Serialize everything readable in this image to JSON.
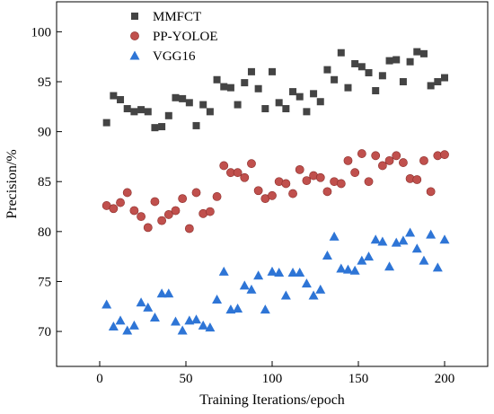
{
  "chart_data": {
    "type": "scatter",
    "xlabel": "Training Iterations/epoch",
    "ylabel": "Precision/%",
    "xlim": [
      -25,
      225
    ],
    "ylim": [
      66.5,
      103
    ],
    "xticks": [
      0,
      50,
      100,
      150,
      200
    ],
    "yticks": [
      70,
      75,
      80,
      85,
      90,
      95,
      100
    ],
    "grid": false,
    "legend_position": "top-left",
    "series": [
      {
        "name": "MMFCT",
        "marker": "square",
        "color": "#444444",
        "x": [
          4,
          8,
          12,
          16,
          20,
          24,
          28,
          32,
          36,
          40,
          44,
          48,
          52,
          56,
          60,
          64,
          68,
          72,
          76,
          80,
          84,
          88,
          92,
          96,
          100,
          104,
          108,
          112,
          116,
          120,
          124,
          128,
          132,
          136,
          140,
          144,
          148,
          152,
          156,
          160,
          164,
          168,
          172,
          176,
          180,
          184,
          188,
          192,
          196,
          200
        ],
        "y": [
          90.9,
          93.6,
          93.2,
          92.3,
          92.0,
          92.2,
          92.0,
          90.4,
          90.5,
          91.6,
          93.4,
          93.3,
          92.9,
          90.6,
          92.7,
          92.0,
          95.2,
          94.5,
          94.4,
          92.7,
          94.9,
          96.0,
          94.3,
          92.3,
          96.0,
          92.9,
          92.3,
          94.0,
          93.5,
          92.0,
          93.8,
          93.0,
          96.2,
          95.2,
          97.9,
          94.4,
          96.8,
          96.5,
          95.9,
          94.1,
          95.6,
          97.1,
          97.2,
          95.0,
          97.0,
          98.0,
          97.8,
          94.6,
          95.0,
          95.4
        ]
      },
      {
        "name": "PP-YOLOE",
        "marker": "circle",
        "color": "#c0504d",
        "x": [
          4,
          8,
          12,
          16,
          20,
          24,
          28,
          32,
          36,
          40,
          44,
          48,
          52,
          56,
          60,
          64,
          68,
          72,
          76,
          80,
          84,
          88,
          92,
          96,
          100,
          104,
          108,
          112,
          116,
          120,
          124,
          128,
          132,
          136,
          140,
          144,
          148,
          152,
          156,
          160,
          164,
          168,
          172,
          176,
          180,
          184,
          188,
          192,
          196,
          200
        ],
        "y": [
          82.6,
          82.3,
          82.9,
          83.9,
          82.1,
          81.5,
          80.4,
          83.0,
          81.1,
          81.7,
          82.1,
          83.3,
          80.3,
          83.9,
          81.8,
          82.0,
          83.5,
          86.6,
          85.9,
          85.9,
          85.4,
          86.8,
          84.1,
          83.3,
          83.6,
          85.0,
          84.8,
          83.8,
          86.2,
          85.1,
          85.6,
          85.4,
          84.0,
          85.0,
          84.8,
          87.1,
          85.9,
          87.8,
          85.0,
          87.6,
          86.6,
          87.1,
          87.6,
          86.9,
          85.3,
          85.2,
          87.1,
          84.0,
          87.6,
          87.7
        ]
      },
      {
        "name": "VGG16",
        "marker": "triangle",
        "color": "#2e75d6",
        "x": [
          4,
          8,
          12,
          16,
          20,
          24,
          28,
          32,
          36,
          40,
          44,
          48,
          52,
          56,
          60,
          64,
          68,
          72,
          76,
          80,
          84,
          88,
          92,
          96,
          100,
          104,
          108,
          112,
          116,
          120,
          124,
          128,
          132,
          136,
          140,
          144,
          148,
          152,
          156,
          160,
          164,
          168,
          172,
          176,
          180,
          184,
          188,
          192,
          196,
          200
        ],
        "y": [
          72.7,
          70.5,
          71.1,
          70.1,
          70.6,
          72.9,
          72.4,
          71.4,
          73.8,
          73.8,
          71.0,
          70.1,
          71.1,
          71.2,
          70.6,
          70.4,
          73.2,
          76.0,
          72.2,
          72.3,
          74.6,
          74.2,
          75.6,
          72.2,
          76.0,
          75.9,
          73.6,
          75.9,
          75.9,
          74.8,
          73.6,
          74.2,
          77.6,
          79.5,
          76.3,
          76.2,
          76.1,
          77.1,
          77.5,
          79.2,
          79.0,
          76.5,
          78.9,
          79.1,
          79.9,
          78.3,
          77.1,
          79.7,
          76.4,
          79.2
        ]
      }
    ]
  }
}
